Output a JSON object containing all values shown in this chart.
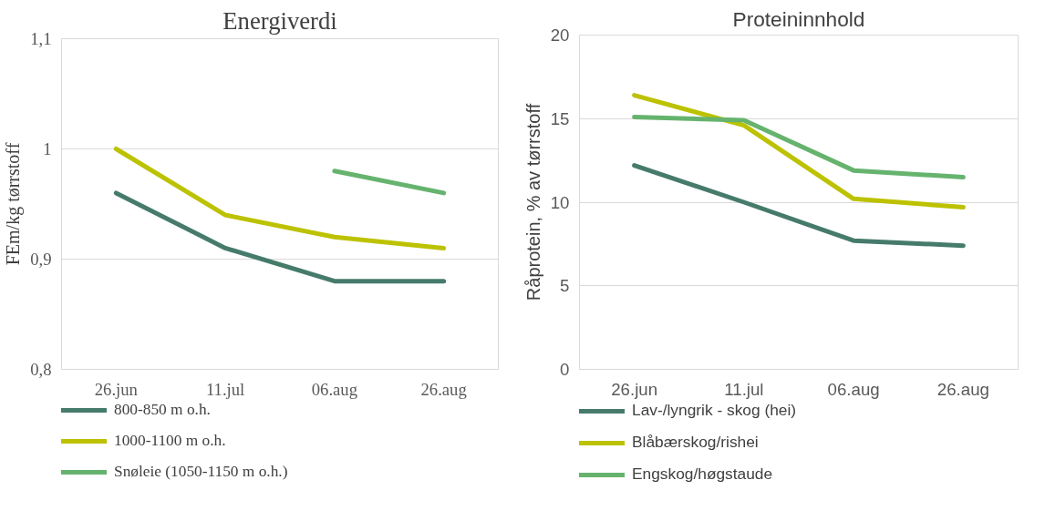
{
  "chart_data": [
    {
      "type": "line",
      "title": "Energiverdi",
      "ylabel": "FEm/kg tørrstoff",
      "categories": [
        "26.jun",
        "11.jul",
        "06.aug",
        "26.aug"
      ],
      "series": [
        {
          "name": "800-850 m o.h.",
          "color": "#467b6c",
          "values": [
            0.96,
            0.91,
            0.88,
            0.88
          ]
        },
        {
          "name": "1000-1100 m o.h.",
          "color": "#bcc200",
          "values": [
            1.0,
            0.94,
            0.92,
            0.91
          ]
        },
        {
          "name": "Snøleie (1050-1150 m o.h.)",
          "color": "#66b36e",
          "values": [
            null,
            null,
            0.98,
            0.96
          ]
        }
      ],
      "ylim": [
        0.8,
        1.1
      ],
      "yticks": [
        {
          "value": 0.8,
          "label": "0,8"
        },
        {
          "value": 0.9,
          "label": "0,9"
        },
        1,
        {
          "value": 1.1,
          "label": "1,1"
        }
      ],
      "grid": "y",
      "legend": "bottom",
      "marker": "none",
      "line_style": "solid"
    },
    {
      "type": "line",
      "title": "Proteininnhold",
      "ylabel": "Råprotein, % av tørrstoff",
      "categories": [
        "26.jun",
        "11.jul",
        "06.aug",
        "26.aug"
      ],
      "series": [
        {
          "name": "Lav-/lyngrik - skog (hei)",
          "color": "#467b6c",
          "values": [
            12.2,
            10.0,
            7.7,
            7.4
          ]
        },
        {
          "name": "Blåbærskog/rishei",
          "color": "#bcc200",
          "values": [
            16.4,
            14.6,
            10.2,
            9.7
          ]
        },
        {
          "name": "Engskog/høgstaude",
          "color": "#66b36e",
          "values": [
            15.1,
            14.9,
            11.9,
            11.5
          ]
        }
      ],
      "ylim": [
        0,
        20
      ],
      "yticks": [
        0,
        5,
        10,
        15,
        20
      ],
      "grid": "y",
      "legend": "bottom",
      "marker": "none",
      "line_style": "solid"
    }
  ]
}
